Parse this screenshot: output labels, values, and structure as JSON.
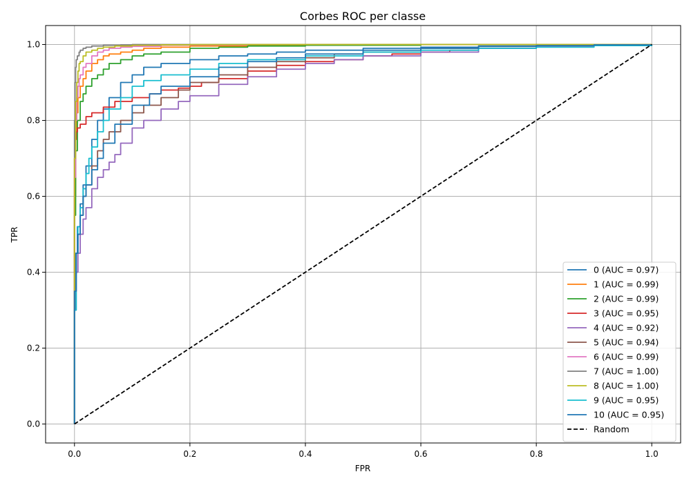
{
  "chart_data": {
    "type": "line",
    "title": "Corbes ROC per classe",
    "xlabel": "FPR",
    "ylabel": "TPR",
    "xlim": [
      -0.05,
      1.05
    ],
    "ylim": [
      -0.05,
      1.05
    ],
    "xticks": [
      0.0,
      0.2,
      0.4,
      0.6,
      0.8,
      1.0
    ],
    "yticks": [
      0.0,
      0.2,
      0.4,
      0.6,
      0.8,
      1.0
    ],
    "tick_labels": [
      "0.0",
      "0.2",
      "0.4",
      "0.6",
      "0.8",
      "1.0"
    ],
    "grid": true,
    "legend_position": "lower right",
    "series": [
      {
        "name": "0 (AUC = 0.97)",
        "color": "#1f77b4",
        "dash": false,
        "x": [
          0,
          0,
          0.002,
          0.005,
          0.01,
          0.015,
          0.02,
          0.03,
          0.04,
          0.05,
          0.06,
          0.08,
          0.1,
          0.12,
          0.15,
          0.2,
          0.25,
          0.3,
          0.35,
          0.4,
          0.5,
          0.6,
          0.7,
          0.8,
          0.9,
          1.0
        ],
        "y": [
          0,
          0.3,
          0.45,
          0.52,
          0.58,
          0.63,
          0.68,
          0.75,
          0.8,
          0.83,
          0.86,
          0.9,
          0.92,
          0.94,
          0.95,
          0.96,
          0.97,
          0.975,
          0.98,
          0.985,
          0.99,
          0.993,
          0.996,
          0.998,
          0.999,
          1.0
        ]
      },
      {
        "name": "1 (AUC = 0.99)",
        "color": "#ff7f0e",
        "dash": false,
        "x": [
          0,
          0,
          0.002,
          0.004,
          0.006,
          0.01,
          0.015,
          0.02,
          0.03,
          0.04,
          0.05,
          0.06,
          0.08,
          0.1,
          0.12,
          0.15,
          0.2,
          0.3,
          0.4,
          0.6,
          0.8,
          1.0
        ],
        "y": [
          0,
          0.6,
          0.75,
          0.82,
          0.86,
          0.89,
          0.91,
          0.93,
          0.95,
          0.96,
          0.97,
          0.975,
          0.98,
          0.985,
          0.99,
          0.993,
          0.996,
          0.998,
          0.999,
          1.0,
          1.0,
          1.0
        ]
      },
      {
        "name": "2 (AUC = 0.99)",
        "color": "#2ca02c",
        "dash": false,
        "x": [
          0,
          0,
          0.002,
          0.005,
          0.01,
          0.015,
          0.02,
          0.03,
          0.04,
          0.05,
          0.06,
          0.08,
          0.1,
          0.12,
          0.15,
          0.2,
          0.25,
          0.3,
          0.4,
          0.6,
          0.8,
          1.0
        ],
        "y": [
          0,
          0.55,
          0.72,
          0.8,
          0.85,
          0.87,
          0.89,
          0.91,
          0.92,
          0.935,
          0.95,
          0.96,
          0.97,
          0.975,
          0.98,
          0.99,
          0.993,
          0.996,
          0.998,
          1.0,
          1.0,
          1.0
        ]
      },
      {
        "name": "3 (AUC = 0.95)",
        "color": "#d62728",
        "dash": false,
        "x": [
          0,
          0,
          0.001,
          0.003,
          0.005,
          0.01,
          0.02,
          0.03,
          0.05,
          0.07,
          0.1,
          0.13,
          0.15,
          0.18,
          0.2,
          0.22,
          0.25,
          0.3,
          0.35,
          0.4,
          0.45,
          0.5,
          0.55,
          0.6,
          0.65,
          0.7,
          0.8,
          0.9,
          1.0
        ],
        "y": [
          0,
          0.7,
          0.75,
          0.77,
          0.78,
          0.79,
          0.81,
          0.82,
          0.835,
          0.85,
          0.86,
          0.87,
          0.88,
          0.885,
          0.89,
          0.9,
          0.91,
          0.93,
          0.945,
          0.955,
          0.96,
          0.97,
          0.975,
          0.98,
          0.985,
          0.99,
          0.995,
          0.998,
          1.0
        ]
      },
      {
        "name": "4 (AUC = 0.92)",
        "color": "#9467bd",
        "dash": false,
        "x": [
          0,
          0,
          0.003,
          0.006,
          0.01,
          0.015,
          0.02,
          0.03,
          0.04,
          0.05,
          0.06,
          0.07,
          0.08,
          0.1,
          0.12,
          0.15,
          0.18,
          0.2,
          0.25,
          0.3,
          0.35,
          0.4,
          0.45,
          0.5,
          0.6,
          0.7,
          0.8,
          0.9,
          1.0
        ],
        "y": [
          0,
          0.3,
          0.4,
          0.45,
          0.5,
          0.54,
          0.57,
          0.62,
          0.65,
          0.67,
          0.69,
          0.71,
          0.74,
          0.78,
          0.8,
          0.83,
          0.85,
          0.865,
          0.895,
          0.915,
          0.935,
          0.95,
          0.96,
          0.97,
          0.98,
          0.99,
          0.995,
          0.998,
          1.0
        ]
      },
      {
        "name": "5 (AUC = 0.94)",
        "color": "#8c564b",
        "dash": false,
        "x": [
          0,
          0,
          0.003,
          0.006,
          0.01,
          0.015,
          0.02,
          0.03,
          0.04,
          0.05,
          0.06,
          0.08,
          0.1,
          0.12,
          0.15,
          0.18,
          0.2,
          0.25,
          0.3,
          0.35,
          0.4,
          0.45,
          0.5,
          0.6,
          0.7,
          0.8,
          0.9,
          1.0
        ],
        "y": [
          0,
          0.35,
          0.45,
          0.5,
          0.55,
          0.6,
          0.63,
          0.68,
          0.72,
          0.75,
          0.77,
          0.8,
          0.82,
          0.84,
          0.86,
          0.88,
          0.9,
          0.92,
          0.94,
          0.955,
          0.965,
          0.975,
          0.98,
          0.99,
          0.995,
          0.998,
          0.999,
          1.0
        ]
      },
      {
        "name": "6 (AUC = 0.99)",
        "color": "#e377c2",
        "dash": false,
        "x": [
          0,
          0,
          0.002,
          0.004,
          0.006,
          0.008,
          0.01,
          0.015,
          0.02,
          0.03,
          0.04,
          0.05,
          0.06,
          0.08,
          0.1,
          0.15,
          0.2,
          0.3,
          0.5,
          1.0
        ],
        "y": [
          0,
          0.65,
          0.8,
          0.86,
          0.89,
          0.91,
          0.92,
          0.94,
          0.95,
          0.97,
          0.98,
          0.985,
          0.99,
          0.993,
          0.995,
          0.998,
          0.999,
          1.0,
          1.0,
          1.0
        ]
      },
      {
        "name": "7 (AUC = 1.00)",
        "color": "#7f7f7f",
        "dash": false,
        "x": [
          0,
          0,
          0.001,
          0.002,
          0.003,
          0.005,
          0.008,
          0.01,
          0.015,
          0.02,
          0.03,
          0.05,
          0.08,
          0.1,
          0.2,
          0.5,
          1.0
        ],
        "y": [
          0,
          0.8,
          0.9,
          0.94,
          0.96,
          0.97,
          0.98,
          0.985,
          0.99,
          0.993,
          0.996,
          0.998,
          0.999,
          1.0,
          1.0,
          1.0,
          1.0
        ]
      },
      {
        "name": "8 (AUC = 1.00)",
        "color": "#bcbd22",
        "dash": false,
        "x": [
          0,
          0,
          0.002,
          0.004,
          0.006,
          0.008,
          0.01,
          0.015,
          0.02,
          0.03,
          0.04,
          0.05,
          0.07,
          0.1,
          0.15,
          0.2,
          0.5,
          1.0
        ],
        "y": [
          0,
          0.7,
          0.85,
          0.9,
          0.93,
          0.95,
          0.955,
          0.97,
          0.98,
          0.985,
          0.99,
          0.993,
          0.996,
          0.998,
          0.999,
          1.0,
          1.0,
          1.0
        ]
      },
      {
        "name": "9 (AUC = 0.95)",
        "color": "#17becf",
        "dash": false,
        "x": [
          0,
          0,
          0.003,
          0.006,
          0.01,
          0.015,
          0.02,
          0.025,
          0.03,
          0.04,
          0.05,
          0.06,
          0.08,
          0.1,
          0.12,
          0.15,
          0.2,
          0.25,
          0.3,
          0.4,
          0.5,
          0.6,
          0.7,
          0.8,
          0.9,
          1.0
        ],
        "y": [
          0,
          0.3,
          0.45,
          0.52,
          0.57,
          0.62,
          0.66,
          0.7,
          0.73,
          0.77,
          0.8,
          0.83,
          0.86,
          0.89,
          0.905,
          0.92,
          0.935,
          0.95,
          0.96,
          0.97,
          0.98,
          0.985,
          0.99,
          0.993,
          0.997,
          1.0
        ]
      },
      {
        "name": "10 (AUC = 0.95)",
        "color": "#1f77b4",
        "dash": false,
        "x": [
          0,
          0,
          0.003,
          0.006,
          0.01,
          0.015,
          0.02,
          0.03,
          0.04,
          0.05,
          0.07,
          0.1,
          0.13,
          0.15,
          0.2,
          0.25,
          0.3,
          0.35,
          0.4,
          0.5,
          0.6,
          0.7,
          0.8,
          0.9,
          1.0
        ],
        "y": [
          0,
          0.35,
          0.45,
          0.5,
          0.55,
          0.6,
          0.63,
          0.67,
          0.7,
          0.74,
          0.79,
          0.84,
          0.87,
          0.89,
          0.915,
          0.94,
          0.955,
          0.965,
          0.975,
          0.985,
          0.99,
          0.995,
          0.997,
          0.999,
          1.0
        ]
      },
      {
        "name": "Random",
        "color": "#000000",
        "dash": true,
        "x": [
          0,
          1
        ],
        "y": [
          0,
          1
        ]
      }
    ]
  }
}
